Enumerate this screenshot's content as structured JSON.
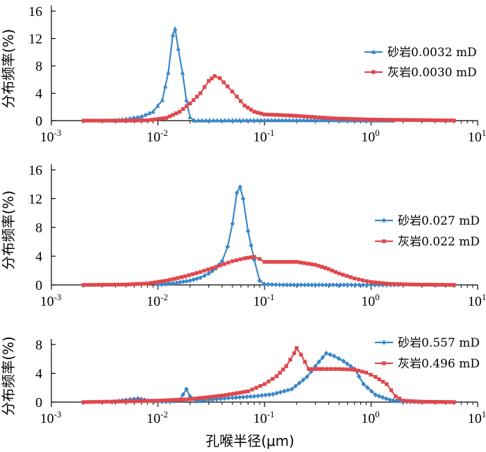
{
  "xlabel": "孔喉半径(μm)",
  "chart_data": [
    {
      "type": "line",
      "xscale": "log",
      "xlim": [
        0.001,
        10
      ],
      "ylim": [
        0,
        16
      ],
      "yticks": [
        0,
        4,
        8,
        12,
        16
      ],
      "xticks": [
        {
          "base": "10",
          "exp": "-3"
        },
        {
          "base": "10",
          "exp": "-2"
        },
        {
          "base": "10",
          "exp": "-1"
        },
        {
          "base": "10",
          "exp": "0"
        },
        {
          "base": "10",
          "exp": "1"
        }
      ],
      "ylabel": "分布频率(%)",
      "legend_position": "right",
      "series": [
        {
          "name": "砂岩0.0032 mD",
          "color": "#3a87c8",
          "marker": "triangle",
          "points": [
            [
              0.0037,
              0
            ],
            [
              0.005,
              0.2
            ],
            [
              0.007,
              0.6
            ],
            [
              0.009,
              1.3
            ],
            [
              0.011,
              3
            ],
            [
              0.0125,
              7
            ],
            [
              0.0138,
              12.5
            ],
            [
              0.0145,
              13.4
            ],
            [
              0.0155,
              10.5
            ],
            [
              0.017,
              7
            ],
            [
              0.0185,
              3
            ],
            [
              0.02,
              0.5
            ],
            [
              0.022,
              0
            ],
            [
              0.05,
              0.03
            ],
            [
              0.1,
              0.05
            ],
            [
              0.2,
              0.05
            ],
            [
              0.4,
              0.05
            ],
            [
              0.8,
              0.02
            ],
            [
              1.6,
              0
            ]
          ]
        },
        {
          "name": "灰岩0.0030 mD",
          "color": "#e0474c",
          "marker": "square",
          "points": [
            [
              0.002,
              0
            ],
            [
              0.005,
              0
            ],
            [
              0.008,
              0.05
            ],
            [
              0.012,
              0.4
            ],
            [
              0.016,
              1.3
            ],
            [
              0.02,
              2.5
            ],
            [
              0.025,
              4
            ],
            [
              0.03,
              5.8
            ],
            [
              0.034,
              6.5
            ],
            [
              0.038,
              6.2
            ],
            [
              0.045,
              5
            ],
            [
              0.055,
              3.5
            ],
            [
              0.065,
              2.2
            ],
            [
              0.08,
              1.3
            ],
            [
              0.1,
              0.9
            ],
            [
              0.15,
              0.8
            ],
            [
              0.2,
              0.7
            ],
            [
              0.3,
              0.5
            ],
            [
              0.5,
              0.3
            ],
            [
              1,
              0.15
            ],
            [
              2,
              0.1
            ],
            [
              4,
              0.05
            ],
            [
              6,
              0.02
            ]
          ]
        }
      ]
    },
    {
      "type": "line",
      "xscale": "log",
      "xlim": [
        0.001,
        10
      ],
      "ylim": [
        0,
        16
      ],
      "yticks": [
        0,
        4,
        8,
        12,
        16
      ],
      "xticks": [
        {
          "base": "10",
          "exp": "-3"
        },
        {
          "base": "10",
          "exp": "-2"
        },
        {
          "base": "10",
          "exp": "-1"
        },
        {
          "base": "10",
          "exp": "0"
        },
        {
          "base": "10",
          "exp": "1"
        }
      ],
      "ylabel": "分布频率(%)",
      "legend_position": "right",
      "series": [
        {
          "name": "砂岩0.027 mD",
          "color": "#3a87c8",
          "marker": "diamond",
          "points": [
            [
              0.01,
              0
            ],
            [
              0.015,
              0.3
            ],
            [
              0.02,
              0.6
            ],
            [
              0.025,
              1
            ],
            [
              0.03,
              1.6
            ],
            [
              0.035,
              2.3
            ],
            [
              0.04,
              3.3
            ],
            [
              0.045,
              5.3
            ],
            [
              0.05,
              8.5
            ],
            [
              0.055,
              12.8
            ],
            [
              0.059,
              13.6
            ],
            [
              0.063,
              12
            ],
            [
              0.07,
              7.5
            ],
            [
              0.08,
              3.5
            ],
            [
              0.09,
              0.6
            ],
            [
              0.1,
              0.1
            ],
            [
              0.15,
              0
            ],
            [
              0.3,
              0
            ],
            [
              0.6,
              0
            ],
            [
              1,
              0
            ],
            [
              1.8,
              0
            ]
          ]
        },
        {
          "name": "灰岩0.022 mD",
          "color": "#e0474c",
          "marker": "square",
          "points": [
            [
              0.002,
              0
            ],
            [
              0.005,
              0.05
            ],
            [
              0.008,
              0.2
            ],
            [
              0.012,
              0.6
            ],
            [
              0.018,
              1.2
            ],
            [
              0.025,
              1.8
            ],
            [
              0.035,
              2.5
            ],
            [
              0.05,
              3.3
            ],
            [
              0.065,
              3.7
            ],
            [
              0.08,
              3.9
            ],
            [
              0.09,
              3.6
            ],
            [
              0.1,
              3.2
            ],
            [
              0.15,
              3.2
            ],
            [
              0.2,
              3.2
            ],
            [
              0.3,
              2.8
            ],
            [
              0.4,
              2.2
            ],
            [
              0.5,
              1.6
            ],
            [
              0.7,
              0.9
            ],
            [
              1,
              0.4
            ],
            [
              1.5,
              0.15
            ],
            [
              2.5,
              0.05
            ],
            [
              6,
              0
            ]
          ]
        }
      ]
    },
    {
      "type": "line",
      "xscale": "log",
      "xlim": [
        0.001,
        10
      ],
      "ylim": [
        0,
        8
      ],
      "yticks": [
        0,
        4,
        8
      ],
      "xticks": [
        {
          "base": "10",
          "exp": "-3"
        },
        {
          "base": "10",
          "exp": "-2"
        },
        {
          "base": "10",
          "exp": "-1"
        },
        {
          "base": "10",
          "exp": "0"
        },
        {
          "base": "10",
          "exp": "1"
        }
      ],
      "ylabel": "分布频率(%)",
      "legend_position": "top-right",
      "series": [
        {
          "name": "砂岩0.557 mD",
          "color": "#3a87c8",
          "marker": "diamond",
          "points": [
            [
              0.0037,
              0
            ],
            [
              0.005,
              0.3
            ],
            [
              0.0065,
              0.5
            ],
            [
              0.008,
              0.2
            ],
            [
              0.01,
              0.05
            ],
            [
              0.013,
              0.05
            ],
            [
              0.016,
              0.3
            ],
            [
              0.0185,
              1.8
            ],
            [
              0.02,
              0.8
            ],
            [
              0.023,
              0.1
            ],
            [
              0.03,
              0.3
            ],
            [
              0.05,
              0.6
            ],
            [
              0.08,
              0.8
            ],
            [
              0.12,
              1.1
            ],
            [
              0.18,
              1.8
            ],
            [
              0.25,
              3.5
            ],
            [
              0.3,
              5
            ],
            [
              0.38,
              6.8
            ],
            [
              0.45,
              6.4
            ],
            [
              0.55,
              5.7
            ],
            [
              0.7,
              4.6
            ],
            [
              0.85,
              2.5
            ],
            [
              1.1,
              1
            ],
            [
              1.5,
              0.3
            ],
            [
              2,
              0.05
            ],
            [
              3,
              0
            ]
          ]
        },
        {
          "name": "灰岩0.496 mD",
          "color": "#e0474c",
          "marker": "square",
          "points": [
            [
              0.002,
              0
            ],
            [
              0.005,
              0.1
            ],
            [
              0.01,
              0.2
            ],
            [
              0.02,
              0.4
            ],
            [
              0.04,
              0.9
            ],
            [
              0.07,
              1.5
            ],
            [
              0.1,
              2.5
            ],
            [
              0.13,
              3.6
            ],
            [
              0.16,
              5
            ],
            [
              0.19,
              6.8
            ],
            [
              0.2,
              7.5
            ],
            [
              0.22,
              6.6
            ],
            [
              0.26,
              4.6
            ],
            [
              0.35,
              4.6
            ],
            [
              0.5,
              4.6
            ],
            [
              0.7,
              4.5
            ],
            [
              0.9,
              4.1
            ],
            [
              1.1,
              3.5
            ],
            [
              1.4,
              2.5
            ],
            [
              1.7,
              0.8
            ],
            [
              2,
              0.2
            ],
            [
              3,
              0.05
            ],
            [
              6,
              0
            ]
          ]
        }
      ]
    }
  ]
}
